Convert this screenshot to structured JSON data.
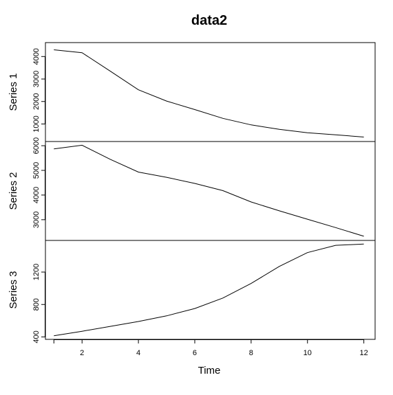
{
  "chart_data": {
    "type": "line",
    "title": "data2",
    "xlabel": "Time",
    "x": [
      1,
      2,
      3,
      4,
      5,
      6,
      7,
      8,
      9,
      10,
      11,
      12
    ],
    "xlim": [
      0.7,
      12.4
    ],
    "xticks": [
      2,
      4,
      6,
      8,
      10,
      12
    ],
    "panels": [
      {
        "ylabel": "Series 1",
        "values": [
          4300,
          4170,
          3350,
          2520,
          2020,
          1640,
          1250,
          960,
          760,
          610,
          520,
          420
        ],
        "ylim": [
          220,
          4620
        ],
        "yticks": [
          1000,
          2000,
          3000,
          4000
        ]
      },
      {
        "ylabel": "Series 2",
        "values": [
          5870,
          6020,
          5450,
          4930,
          4720,
          4470,
          4180,
          3720,
          3360,
          3020,
          2680,
          2330
        ],
        "ylim": [
          2160,
          6170
        ],
        "yticks": [
          3000,
          4000,
          5000,
          6000
        ]
      },
      {
        "ylabel": "Series 3",
        "values": [
          415,
          470,
          530,
          590,
          660,
          750,
          880,
          1060,
          1270,
          1440,
          1530,
          1545
        ],
        "ylim": [
          370,
          1590
        ],
        "yticks": [
          400,
          800,
          1200
        ]
      }
    ]
  }
}
